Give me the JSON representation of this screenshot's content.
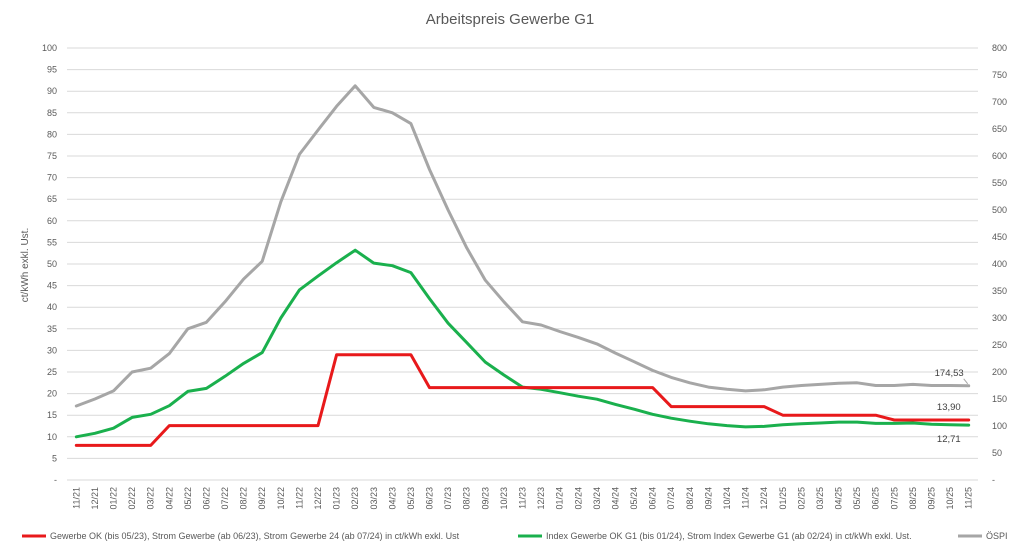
{
  "chart_data": {
    "type": "line",
    "title": "Arbeitspreis Gewerbe G1",
    "ylabel": "ct/kWh exkl. Ust.",
    "ylim": [
      0,
      100
    ],
    "y2lim": [
      0,
      800
    ],
    "y_ticks": [
      "-",
      "5",
      "10",
      "15",
      "20",
      "25",
      "30",
      "35",
      "40",
      "45",
      "50",
      "55",
      "60",
      "65",
      "70",
      "75",
      "80",
      "85",
      "90",
      "95",
      "100"
    ],
    "y2_ticks": [
      "-",
      "50",
      "100",
      "150",
      "200",
      "250",
      "300",
      "350",
      "400",
      "450",
      "500",
      "550",
      "600",
      "650",
      "700",
      "750",
      "800"
    ],
    "grid": true,
    "legend_position": "bottom",
    "x": [
      "11/21",
      "12/21",
      "01/22",
      "02/22",
      "03/22",
      "04/22",
      "05/22",
      "06/22",
      "07/22",
      "08/22",
      "09/22",
      "10/22",
      "11/22",
      "12/22",
      "01/23",
      "02/23",
      "03/23",
      "04/23",
      "05/23",
      "06/23",
      "07/23",
      "08/23",
      "09/23",
      "10/23",
      "11/23",
      "12/23",
      "01/24",
      "02/24",
      "03/24",
      "04/24",
      "05/24",
      "06/24",
      "07/24",
      "08/24",
      "09/24",
      "10/24",
      "11/24",
      "12/24",
      "01/25",
      "02/25",
      "03/25",
      "04/25",
      "05/25",
      "06/25",
      "07/25",
      "08/25",
      "09/25",
      "10/25",
      "11/25"
    ],
    "series": [
      {
        "name": "Gewerbe OK (bis 05/23), Strom Gewerbe (ab 06/23), Strom Gewerbe 24 (ab 07/24) in ct/kWh exkl. Ust",
        "axis": "left",
        "color": "#e8191b",
        "values": [
          8,
          8,
          8,
          8,
          8,
          12.6,
          12.6,
          12.6,
          12.6,
          12.6,
          12.6,
          12.6,
          12.6,
          12.6,
          29,
          29,
          29,
          29,
          29,
          21.4,
          21.4,
          21.4,
          21.4,
          21.4,
          21.4,
          21.4,
          21.4,
          21.4,
          21.4,
          21.4,
          21.4,
          21.4,
          17,
          17,
          17,
          17,
          17,
          17,
          15,
          15,
          15,
          15,
          15,
          15,
          13.9,
          13.9,
          13.9,
          13.9,
          13.9
        ]
      },
      {
        "name": "Index Gewerbe OK G1 (bis 01/24), Strom Index Gewerbe G1 (ab 02/24) in ct/kWh exkl. Ust.",
        "axis": "left",
        "color": "#1ab04d",
        "values": [
          10,
          10.8,
          12,
          14.5,
          15.2,
          17.2,
          20.5,
          21.2,
          24,
          27,
          29.5,
          37.5,
          44,
          47.2,
          50.3,
          53.2,
          50.2,
          49.6,
          48,
          42,
          36.3,
          31.8,
          27.3,
          24.3,
          21.5,
          21,
          20.2,
          19.4,
          18.7,
          17.5,
          16.4,
          15.2,
          14.3,
          13.6,
          13,
          12.6,
          12.3,
          12.4,
          12.8,
          13,
          13.2,
          13.4,
          13.4,
          13.1,
          13.1,
          13.2,
          12.9,
          12.8,
          12.71
        ]
      },
      {
        "name": "ÖSPI",
        "axis": "right",
        "color": "#a6a6a6",
        "values": [
          137,
          150,
          165,
          200,
          207,
          234,
          280,
          292,
          330,
          372,
          405,
          515,
          603,
          648,
          692,
          730,
          690,
          680,
          660,
          575,
          500,
          430,
          370,
          330,
          293,
          287,
          275,
          264,
          252,
          235,
          219,
          203,
          190,
          180,
          172,
          168,
          165,
          167,
          172,
          175,
          177,
          179,
          180,
          175,
          175,
          177,
          175,
          175,
          174.53
        ]
      }
    ],
    "data_labels": [
      {
        "series": 2,
        "text": "174,53"
      },
      {
        "series": 0,
        "text": "13,90"
      },
      {
        "series": 1,
        "text": "12,71"
      }
    ]
  }
}
